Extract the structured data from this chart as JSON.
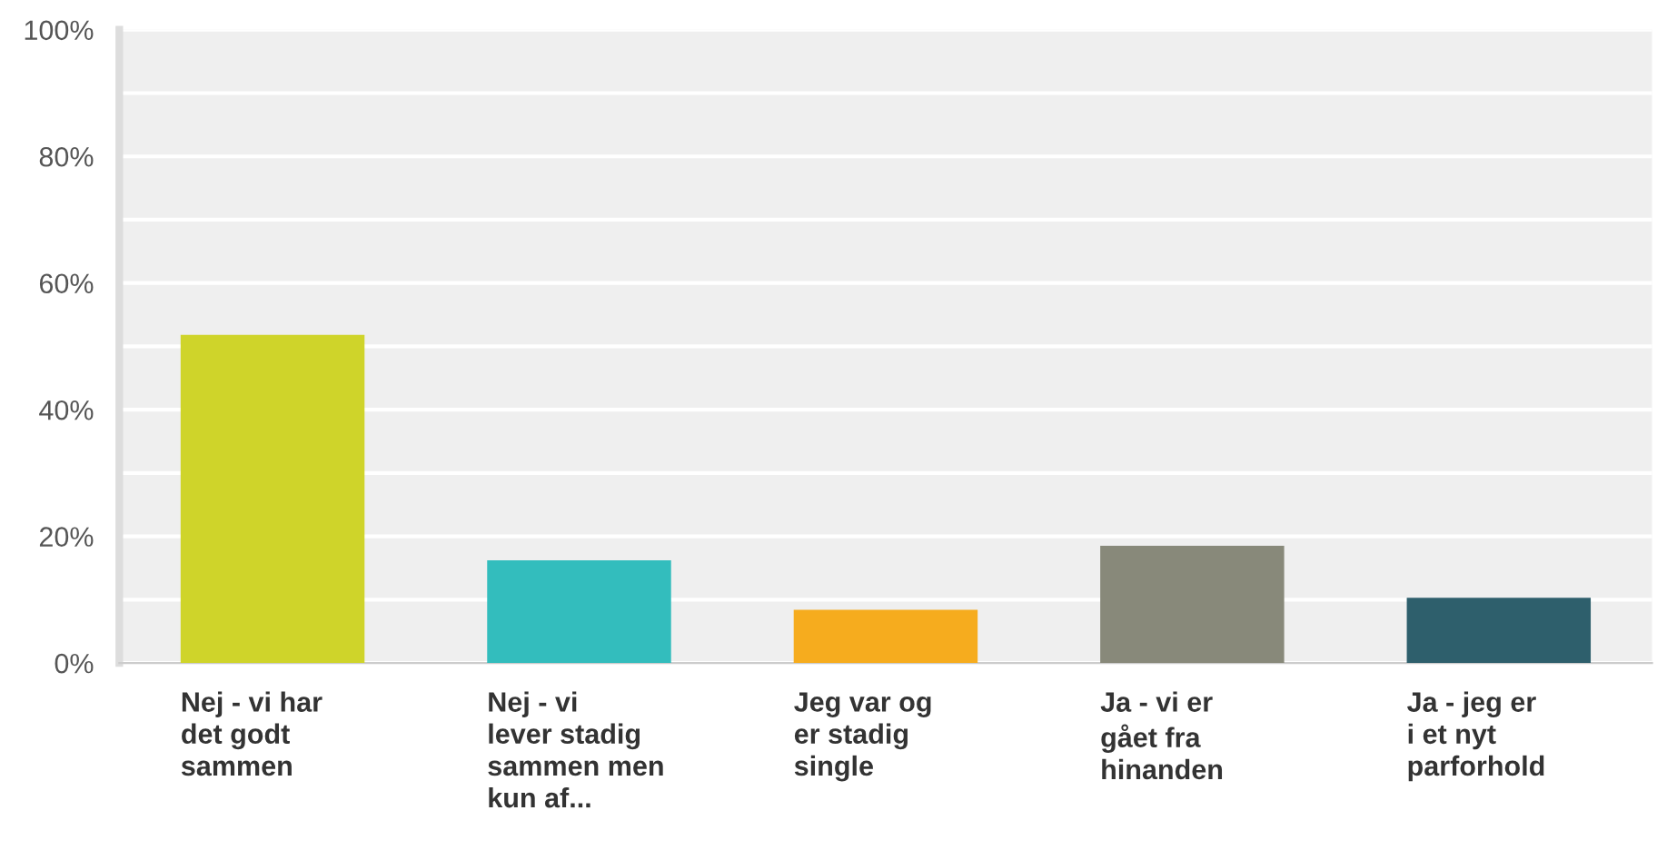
{
  "chart_data": {
    "type": "bar",
    "categories": [
      "Nej - vi har\ndet godt\nsammen",
      "Nej - vi\nlever stadig\nsammen men\nkun af...",
      "Jeg var og\ner stadig\nsingle",
      "Ja - vi er\ngået fra\nhinanden",
      "Ja - jeg er\ni et nyt\nparforhold"
    ],
    "values": [
      51.8,
      16.2,
      8.4,
      18.5,
      10.3
    ],
    "colors": [
      "#cfd42a",
      "#33bdbd",
      "#f6ac1e",
      "#88897a",
      "#2e5f6c"
    ],
    "ylim": [
      0,
      100
    ],
    "yticks": [
      {
        "value": 0,
        "label": "0%"
      },
      {
        "value": 10,
        "label": null
      },
      {
        "value": 20,
        "label": "20%"
      },
      {
        "value": 30,
        "label": null
      },
      {
        "value": 40,
        "label": "40%"
      },
      {
        "value": 50,
        "label": null
      },
      {
        "value": 60,
        "label": "60%"
      },
      {
        "value": 70,
        "label": null
      },
      {
        "value": 80,
        "label": "80%"
      },
      {
        "value": 90,
        "label": null
      },
      {
        "value": 100,
        "label": "100%"
      }
    ],
    "grid": "y"
  }
}
